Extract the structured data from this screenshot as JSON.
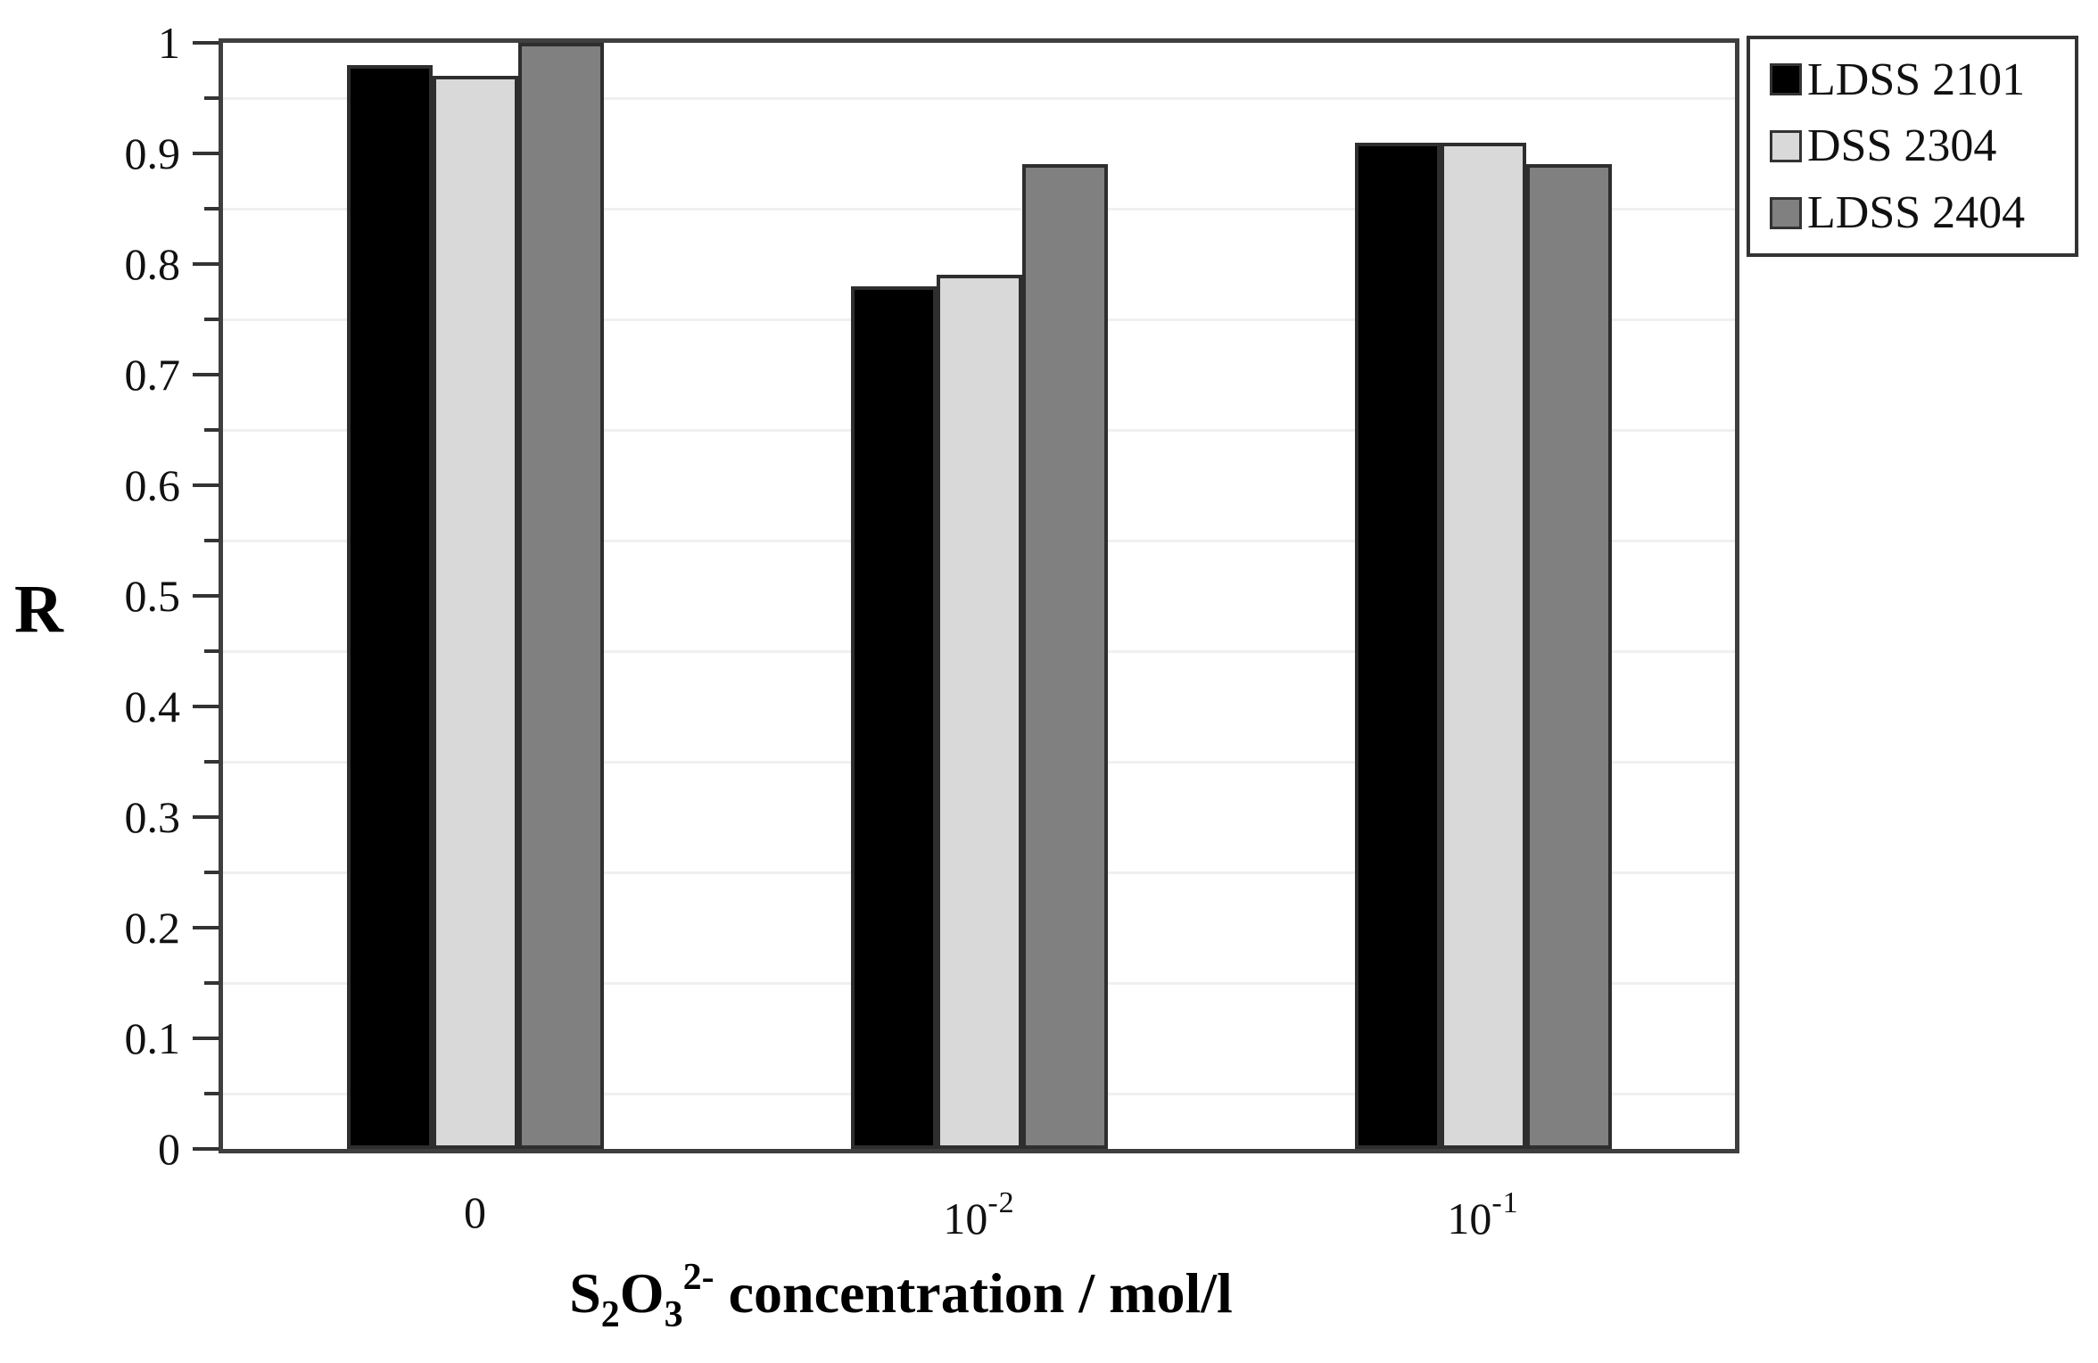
{
  "chart_data": {
    "type": "bar",
    "title": "",
    "ylabel": "R",
    "xlabel_plain": "S2O3 2- concentration / mol/l",
    "xlabel_segments": [
      {
        "t": "S"
      },
      {
        "t": "2",
        "style": "sub"
      },
      {
        "t": "O"
      },
      {
        "t": "3",
        "style": "sub"
      },
      {
        "t": "2-",
        "style": "sup"
      },
      {
        "t": " concentration / mol/l"
      }
    ],
    "categories": [
      {
        "base": "0",
        "sup": ""
      },
      {
        "base": "10",
        "sup": "-2"
      },
      {
        "base": "10",
        "sup": "-1"
      }
    ],
    "series": [
      {
        "name": "LDSS 2101",
        "color": "#000000",
        "values": [
          0.98,
          0.78,
          0.91
        ]
      },
      {
        "name": "DSS 2304",
        "color": "#d9d9d9",
        "values": [
          0.97,
          0.79,
          0.91
        ]
      },
      {
        "name": "LDSS 2404",
        "color": "#808080",
        "values": [
          1.0,
          0.89,
          0.89
        ]
      }
    ],
    "ylim": [
      0,
      1
    ],
    "y_major_ticks": [
      0,
      0.1,
      0.2,
      0.3,
      0.4,
      0.5,
      0.6,
      0.7,
      0.8,
      0.9,
      1
    ],
    "y_tick_labels": [
      "0",
      "0.1",
      "0.2",
      "0.3",
      "0.4",
      "0.5",
      "0.6",
      "0.7",
      "0.8",
      "0.9",
      "1"
    ],
    "y_minor_ticks": [
      0.05,
      0.15,
      0.25,
      0.35,
      0.45,
      0.55,
      0.65,
      0.75,
      0.85,
      0.95
    ],
    "gridlines_at_minor_ticks": true,
    "legend": {
      "position": "top-right",
      "entries": [
        "LDSS 2101",
        "DSS 2304",
        "LDSS 2404"
      ]
    },
    "colors": {
      "axis_border": "#3f3f3f",
      "bar_border": "#2e2e2e",
      "gridline": "#f0f0f0",
      "text": "#111111",
      "background": "#ffffff"
    }
  }
}
